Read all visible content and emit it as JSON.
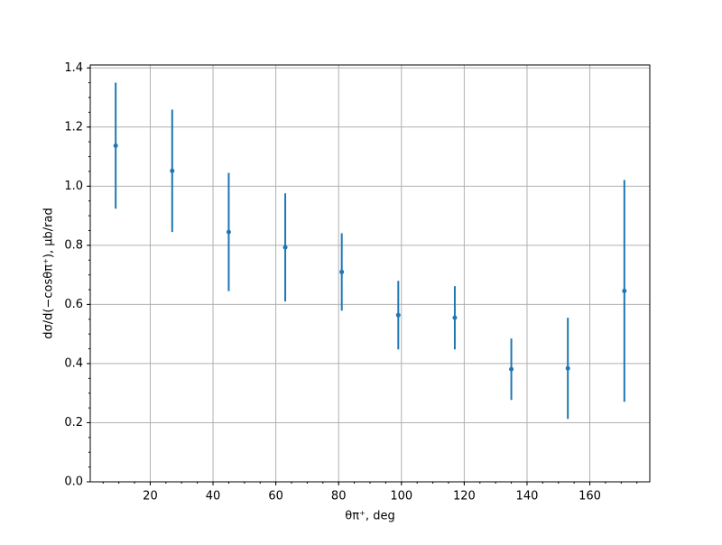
{
  "chart_data": {
    "type": "errorbar",
    "x_label": "θπ⁺, deg",
    "y_label": "dσ/d(−cosθπ⁺), μb/rad",
    "x": [
      9,
      27,
      45,
      63,
      81,
      99,
      117,
      135,
      153,
      171
    ],
    "series": [
      {
        "color": "#1f77b4",
        "values": [
          1.137,
          1.052,
          0.845,
          0.793,
          0.71,
          0.564,
          0.555,
          0.381,
          0.384,
          0.646
        ],
        "errors": [
          0.213,
          0.207,
          0.2,
          0.183,
          0.131,
          0.116,
          0.107,
          0.104,
          0.171,
          0.375
        ]
      }
    ],
    "xlim": [
      0.9,
      179.1
    ],
    "ylim": [
      0,
      1.41
    ],
    "xticks": [
      20,
      40,
      60,
      80,
      100,
      120,
      140,
      160
    ],
    "yticks": [
      {
        "value": 0,
        "label": "0.0"
      },
      0.2,
      0.4,
      0.6,
      0.8,
      {
        "value": 1,
        "label": "1.0"
      },
      1.2,
      1.4
    ],
    "grid": true,
    "minor_ticks": true
  }
}
